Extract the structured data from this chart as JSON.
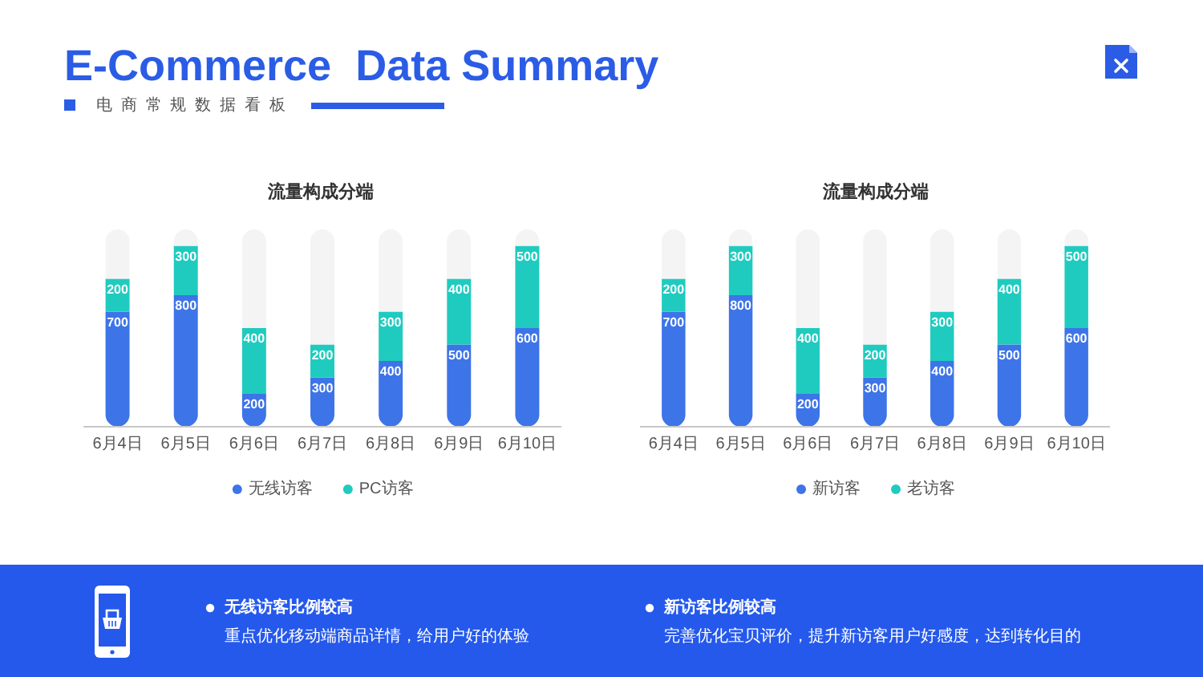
{
  "chart_data": [
    {
      "type": "other",
      "title": "E-Commerce  Data Summary",
      "subtitle": "电商常规数据看板"
    },
    {
      "type": "bar",
      "title": "流量构成分端",
      "categories": [
        "6月4日",
        "6月5日",
        "6月6日",
        "6月7日",
        "6月8日",
        "6月9日",
        "6月10日"
      ],
      "series": [
        {
          "name": "无线访客",
          "color": "#3d74e8",
          "values": [
            700,
            800,
            200,
            300,
            400,
            500,
            600
          ],
          "value_labels": [
            "700",
            "800",
            "200",
            "300",
            "400",
            "500",
            "600"
          ]
        },
        {
          "name": "PC访客",
          "color": "#1fcbbf",
          "values": [
            200,
            300,
            400,
            200,
            300,
            400,
            500
          ],
          "value_labels": [
            "200",
            "300",
            "400",
            "200",
            "300",
            "400",
            "500"
          ]
        },
        {
          "color": "#f4f4f4",
          "values": [
            300,
            100,
            600,
            700,
            500,
            300,
            100
          ]
        }
      ],
      "stacked": true,
      "ylim": [
        0,
        1200
      ],
      "legend": "bottom",
      "tick_labels": "x"
    },
    {
      "type": "bar",
      "title": "流量构成分端",
      "categories": [
        "6月4日",
        "6月5日",
        "6月6日",
        "6月7日",
        "6月8日",
        "6月9日",
        "6月10日"
      ],
      "series": [
        {
          "name": "新访客",
          "color": "#3d74e8",
          "values": [
            700,
            800,
            200,
            300,
            400,
            500,
            600
          ],
          "value_labels": [
            "700",
            "800",
            "200",
            "300",
            "400",
            "500",
            "600"
          ]
        },
        {
          "name": "老访客",
          "color": "#1fcbbf",
          "values": [
            200,
            300,
            400,
            200,
            300,
            400,
            500
          ],
          "value_labels": [
            "200",
            "300",
            "400",
            "200",
            "300",
            "400",
            "500"
          ]
        },
        {
          "color": "#f4f4f4",
          "values": [
            300,
            100,
            600,
            700,
            500,
            300,
            100
          ]
        }
      ],
      "stacked": true,
      "ylim": [
        0,
        1200
      ],
      "legend": "bottom",
      "tick_labels": "x"
    },
    {
      "type": "other",
      "annotations": [
        "无线访客比例较高",
        "重点优化移动端商品详情，给用户好的体验",
        "新访客比例较高",
        "完善优化宝贝评价，提升新访客用户好感度，达到转化目的"
      ]
    }
  ]
}
